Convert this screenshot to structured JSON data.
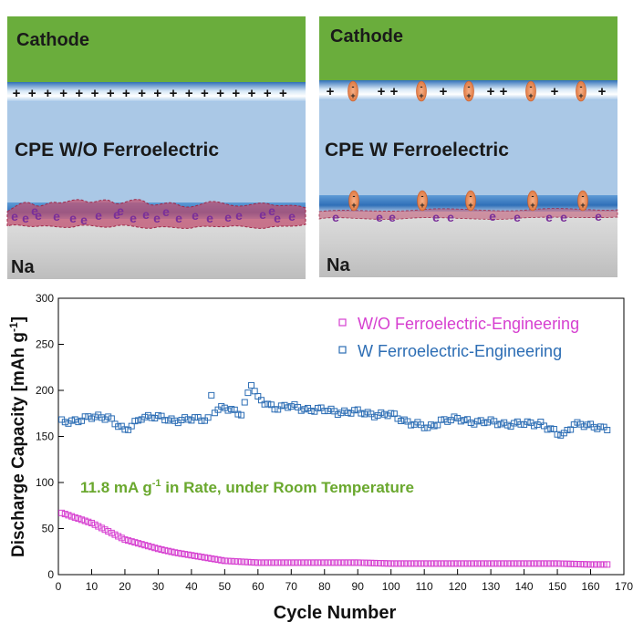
{
  "panels": {
    "left": {
      "cathode_label": "Cathode",
      "cpe_label": "CPE W/O Ferroelectric",
      "anode_label": "Na",
      "plus_symbol": "+",
      "electron_symbol": "e"
    },
    "right": {
      "cathode_label": "Cathode",
      "cpe_label": "CPE W Ferroelectric",
      "anode_label": "Na",
      "plus_symbol": "+",
      "minus_symbol": "-",
      "electron_symbol": "e"
    }
  },
  "colors": {
    "cathode_green": "#6aad3c",
    "electrolyte_blue": "#aac8e6",
    "interface_blue": "#3b7fc8",
    "sodium_gray": "#c4c4c4",
    "dendrite_red": "#b04060",
    "dipole_orange": "#e8874e",
    "electron_purple": "#7a2f9a",
    "series_magenta": "#d63fd0",
    "series_blue": "#2c6db4",
    "annotation_green": "#6aa82e"
  },
  "chart_data": {
    "type": "scatter",
    "xlabel": "Cycle Number",
    "ylabel": "Discharge Capacity [mAh g-1]",
    "xlim": [
      0,
      170
    ],
    "ylim": [
      0,
      300
    ],
    "xticks": [
      0,
      10,
      20,
      30,
      40,
      50,
      60,
      70,
      80,
      90,
      100,
      110,
      120,
      130,
      140,
      150,
      160,
      170
    ],
    "yticks": [
      0,
      50,
      100,
      150,
      200,
      250,
      300
    ],
    "legend_position": "top-right",
    "annotation": "11.8 mA g-1 in Rate, under Room Temperature",
    "series": [
      {
        "name": "W/O Ferroelectric-Engineering",
        "marker": "open-square",
        "color": "#d63fd0",
        "x": [
          1,
          5,
          10,
          15,
          20,
          25,
          30,
          35,
          40,
          45,
          50,
          55,
          60,
          70,
          80,
          90,
          100,
          110,
          120,
          130,
          140,
          150,
          160,
          165
        ],
        "y": [
          67,
          62,
          56,
          47,
          38,
          33,
          28,
          24,
          21,
          18,
          15,
          14,
          13,
          13,
          13,
          13,
          12,
          12,
          12,
          12,
          12,
          12,
          11,
          11
        ]
      },
      {
        "name": "W Ferroelectric-Engineering",
        "marker": "open-square",
        "color": "#2c6db4",
        "x": [
          1,
          5,
          10,
          15,
          20,
          21,
          25,
          30,
          35,
          40,
          45,
          46,
          47,
          50,
          55,
          58,
          60,
          65,
          70,
          80,
          90,
          100,
          110,
          111,
          115,
          120,
          130,
          140,
          145,
          150,
          152,
          155,
          160,
          165
        ],
        "y": [
          165,
          168,
          170,
          172,
          155,
          158,
          172,
          170,
          168,
          168,
          170,
          195,
          178,
          180,
          176,
          207,
          190,
          182,
          182,
          178,
          176,
          173,
          160,
          158,
          168,
          168,
          165,
          163,
          165,
          152,
          152,
          165,
          160,
          160
        ]
      }
    ]
  }
}
